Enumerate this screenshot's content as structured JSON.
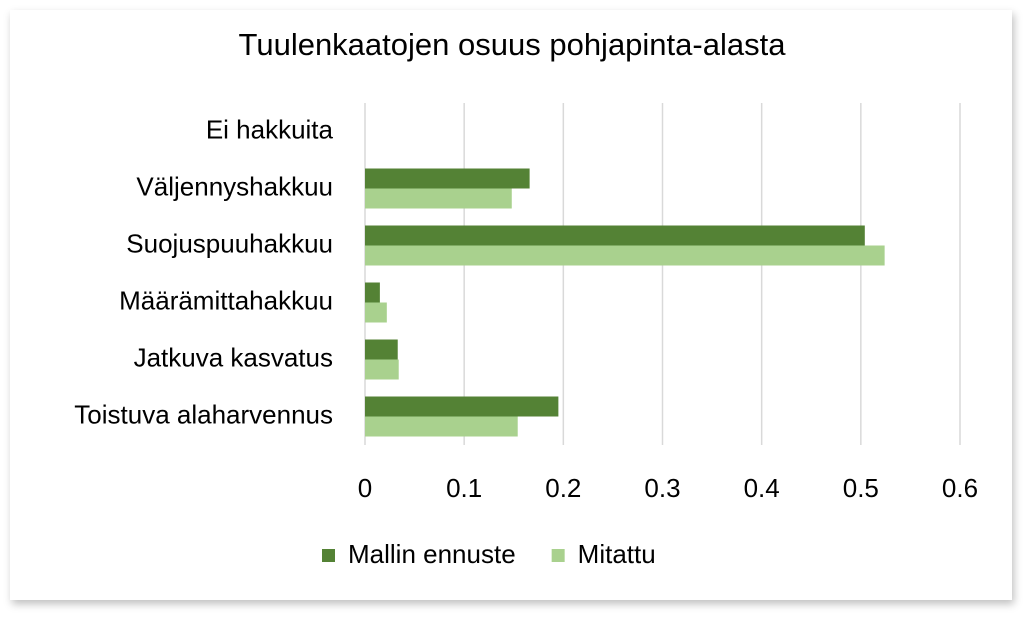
{
  "chart_data": {
    "type": "barh",
    "title": "Tuulenkaatojen osuus pohjapinta-alasta",
    "categories": [
      "Ei hakkuita",
      "Väljennyshakkuu",
      "Suojuspuuhakkuu",
      "Määrämittahakkuu",
      "Jatkuva kasvatus",
      "Toistuva alaharvennus"
    ],
    "series": [
      {
        "name": "Mallin ennuste",
        "color": "#548235",
        "values": [
          0,
          0.166,
          0.504,
          0.015,
          0.033,
          0.195
        ]
      },
      {
        "name": "Mitattu",
        "color": "#a9d18e",
        "values": [
          0,
          0.148,
          0.524,
          0.022,
          0.034,
          0.154
        ]
      }
    ],
    "xlim": [
      0,
      0.6
    ],
    "xticks": [
      0,
      0.1,
      0.2,
      0.3,
      0.4,
      0.5,
      0.6
    ],
    "grid": true,
    "legend": "bottom"
  }
}
